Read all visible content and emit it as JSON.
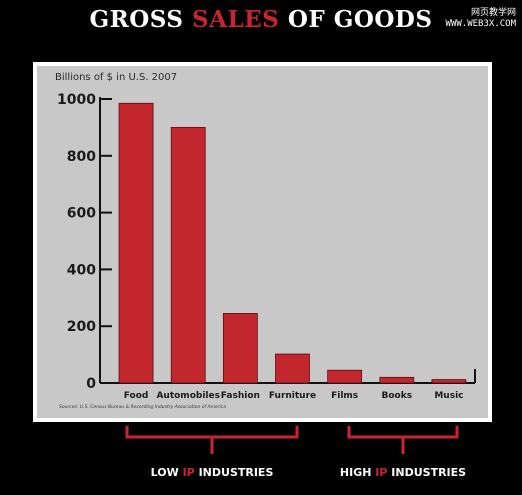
{
  "title": {
    "part1": "GROSS",
    "part2": "SALES",
    "part3": "OF GOODS"
  },
  "watermark": {
    "line1": "网页教学网",
    "line2": "WWW.WEB3X.COM"
  },
  "chart_data": {
    "type": "bar",
    "unit_label": "Billions of $ in U.S. 2007",
    "categories": [
      "Food",
      "Automobiles",
      "Fashion",
      "Furniture",
      "Films",
      "Books",
      "Music"
    ],
    "values": [
      985,
      900,
      245,
      102,
      45,
      20,
      12
    ],
    "ylim": [
      0,
      1000
    ],
    "yticks": [
      0,
      200,
      400,
      600,
      800,
      1000
    ],
    "grid": false,
    "bar_color": "#c1272d",
    "source": "Sources: U.S. Census Bureau & Recording Industry Association of America"
  },
  "groups": {
    "low": {
      "prefix": "LOW",
      "ip": "IP",
      "suffix": "INDUSTRIES"
    },
    "high": {
      "prefix": "HIGH",
      "ip": "IP",
      "suffix": "INDUSTRIES"
    }
  },
  "colors": {
    "accent": "#c8262c",
    "background": "#000000",
    "panel": "#c8c8c8"
  }
}
